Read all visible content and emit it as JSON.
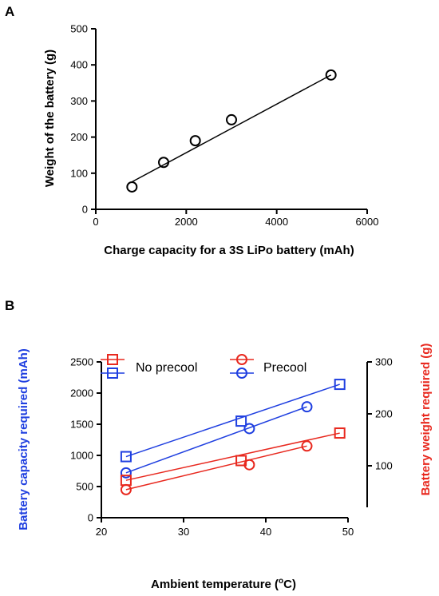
{
  "colors": {
    "black": "#000000",
    "blue": "#1f3fe0",
    "red": "#e8281e"
  },
  "chart_data": [
    {
      "panel": "A",
      "type": "scatter",
      "xlabel": "Charge capacity for a 3S LiPo battery (mAh)",
      "ylabel": "Weight of the battery (g)",
      "xlim": [
        0,
        6000
      ],
      "ylim": [
        0,
        500
      ],
      "xticks": [
        "0",
        "2000",
        "4000",
        "6000"
      ],
      "yticks": [
        "0",
        "100",
        "200",
        "300",
        "400",
        "500"
      ],
      "points": [
        {
          "x": 800,
          "y": 62
        },
        {
          "x": 1500,
          "y": 130
        },
        {
          "x": 2200,
          "y": 190
        },
        {
          "x": 3000,
          "y": 248
        },
        {
          "x": 5200,
          "y": 372
        }
      ],
      "fit_line": [
        {
          "x": 800,
          "y": 76
        },
        {
          "x": 5200,
          "y": 372
        }
      ],
      "marker": "circle",
      "color": "#000000"
    },
    {
      "panel": "B",
      "type": "line",
      "xlabel": "Ambient temperature (",
      "xlabel_sup": "o",
      "xlabel_end": "C)",
      "ylabel": "Battery capacity required (mAh)",
      "ylabel_right": "Battery weight required (g)",
      "xlim": [
        20,
        50
      ],
      "ylim": [
        0,
        2500
      ],
      "ylim_right": [
        0,
        300
      ],
      "xticks": [
        "20",
        "30",
        "40",
        "50"
      ],
      "yticks": [
        "0",
        "500",
        "1000",
        "1500",
        "2000",
        "2500"
      ],
      "yticks_right": [
        "100",
        "200",
        "300"
      ],
      "series": [
        {
          "name": "No precool",
          "axis": "left",
          "color": "#1f3fe0",
          "marker": "square",
          "x": [
            23,
            37,
            49
          ],
          "y": [
            980,
            1550,
            2140
          ],
          "fit": [
            [
              23,
              980
            ],
            [
              49,
              2140
            ]
          ]
        },
        {
          "name": "Precool",
          "axis": "left",
          "color": "#1f3fe0",
          "marker": "circle",
          "x": [
            23,
            38,
            45
          ],
          "y": [
            720,
            1430,
            1780
          ],
          "fit": [
            [
              23,
              720
            ],
            [
              45,
              1780
            ]
          ]
        },
        {
          "name": "No precool",
          "axis": "right",
          "color": "#e8281e",
          "marker": "square",
          "x": [
            23,
            37,
            49
          ],
          "y": [
            72,
            110,
            163
          ],
          "fit": [
            [
              23,
              72
            ],
            [
              49,
              163
            ]
          ]
        },
        {
          "name": "Precool",
          "axis": "right",
          "color": "#e8281e",
          "marker": "circle",
          "x": [
            23,
            38,
            45
          ],
          "y": [
            54,
            102,
            138
          ],
          "fit": [
            [
              23,
              54
            ],
            [
              45,
              138
            ]
          ]
        }
      ],
      "legend": [
        {
          "label": "No precool",
          "markers": [
            {
              "color": "#e8281e",
              "shape": "square"
            },
            {
              "color": "#1f3fe0",
              "shape": "square"
            }
          ]
        },
        {
          "label": "Precool",
          "markers": [
            {
              "color": "#e8281e",
              "shape": "circle"
            },
            {
              "color": "#1f3fe0",
              "shape": "circle"
            }
          ]
        }
      ]
    }
  ]
}
